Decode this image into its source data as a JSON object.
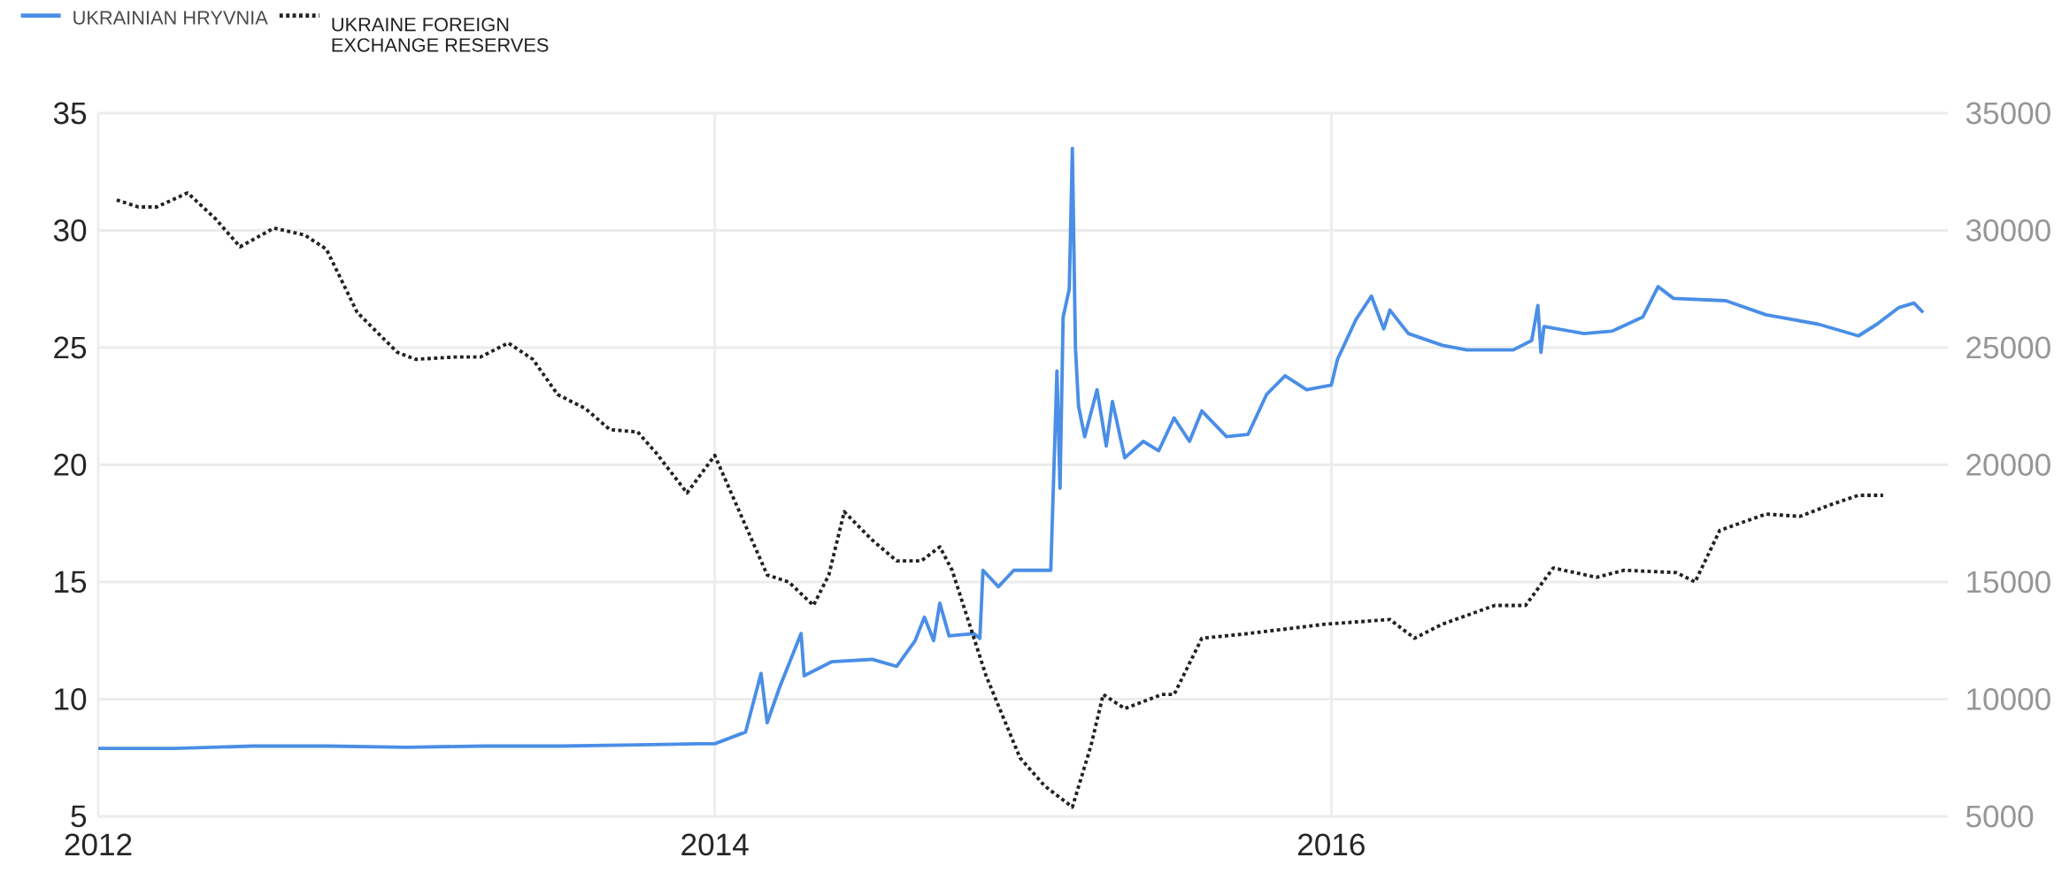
{
  "chart_data": {
    "type": "line",
    "xlim": [
      2012,
      2018
    ],
    "xticks": [
      2012,
      2014,
      2016
    ],
    "ylim": [
      5,
      35
    ],
    "yticks": [
      5,
      10,
      15,
      20,
      25,
      30,
      35
    ],
    "y2lim": [
      5000,
      35000
    ],
    "y2ticks": [
      5000,
      10000,
      15000,
      20000,
      25000,
      30000,
      35000
    ],
    "grid": true,
    "legend": "top left",
    "marker": "none",
    "series": [
      {
        "name": "UKRAINIAN HRYVNIA",
        "color": "#4a8ee6",
        "line_style": "solid",
        "x": [
          2012.0,
          2012.25,
          2012.5,
          2012.75,
          2013.0,
          2013.25,
          2013.5,
          2013.75,
          2013.95,
          2014.0,
          2014.1,
          2014.15,
          2014.17,
          2014.21,
          2014.28,
          2014.29,
          2014.38,
          2014.51,
          2014.59,
          2014.65,
          2014.68,
          2014.71,
          2014.73,
          2014.76,
          2014.84,
          2014.86,
          2014.87,
          2014.92,
          2014.97,
          2015.09,
          2015.11,
          2015.12,
          2015.13,
          2015.15,
          2015.16,
          2015.17,
          2015.18,
          2015.2,
          2015.24,
          2015.27,
          2015.29,
          2015.33,
          2015.39,
          2015.44,
          2015.49,
          2015.54,
          2015.58,
          2015.66,
          2015.73,
          2015.79,
          2015.85,
          2015.92,
          2016.0,
          2016.02,
          2016.08,
          2016.13,
          2016.17,
          2016.19,
          2016.25,
          2016.36,
          2016.44,
          2016.59,
          2016.65,
          2016.67,
          2016.68,
          2016.69,
          2016.82,
          2016.91,
          2017.01,
          2017.06,
          2017.11,
          2017.28,
          2017.41,
          2017.58,
          2017.71,
          2017.77,
          2017.84,
          2017.89,
          2017.92
        ],
        "values": [
          7.9,
          7.9,
          8.0,
          8.0,
          7.95,
          8.0,
          8.0,
          8.05,
          8.1,
          8.1,
          8.6,
          11.1,
          9.0,
          10.5,
          12.8,
          11.0,
          11.6,
          11.7,
          11.4,
          12.5,
          13.5,
          12.5,
          14.1,
          12.7,
          12.8,
          12.6,
          15.5,
          14.8,
          15.5,
          15.5,
          24,
          19,
          26.3,
          27.5,
          33.5,
          25,
          22.5,
          21.2,
          23.2,
          20.8,
          22.7,
          20.3,
          21.0,
          20.6,
          22.0,
          21.0,
          22.3,
          21.2,
          21.3,
          23.0,
          23.8,
          23.2,
          23.4,
          24.5,
          26.2,
          27.2,
          25.8,
          26.6,
          25.6,
          25.1,
          24.9,
          24.9,
          25.3,
          26.8,
          24.8,
          25.9,
          25.6,
          25.7,
          26.3,
          27.6,
          27.1,
          27.0,
          26.4,
          26.0,
          25.5,
          26.0,
          26.7,
          26.9,
          26.5
        ]
      },
      {
        "name": "UKRAINE FOREIGN EXCHANGE RESERVES",
        "color": "#222222",
        "line_style": "dotted",
        "axis": "y2",
        "x": [
          2012.06,
          2012.13,
          2012.19,
          2012.29,
          2012.38,
          2012.46,
          2012.57,
          2012.67,
          2012.74,
          2012.84,
          2012.97,
          2013.03,
          2013.16,
          2013.24,
          2013.33,
          2013.41,
          2013.49,
          2013.58,
          2013.66,
          2013.75,
          2013.81,
          2013.91,
          2014.0,
          2014.08,
          2014.17,
          2014.24,
          2014.32,
          2014.37,
          2014.42,
          2014.51,
          2014.59,
          2014.67,
          2014.73,
          2014.77,
          2014.88,
          2014.99,
          2015.07,
          2015.16,
          2015.22,
          2015.26,
          2015.33,
          2015.45,
          2015.49,
          2015.58,
          2015.73,
          2015.98,
          2016.19,
          2016.27,
          2016.36,
          2016.53,
          2016.63,
          2016.72,
          2016.86,
          2016.95,
          2017.12,
          2017.18,
          2017.26,
          2017.41,
          2017.52,
          2017.62,
          2017.71,
          2017.79
        ],
        "values": [
          31300,
          31000,
          31000,
          31600,
          30500,
          29300,
          30100,
          29800,
          29200,
          26500,
          24800,
          24500,
          24600,
          24600,
          25200,
          24500,
          23000,
          22400,
          21500,
          21400,
          20500,
          18800,
          20400,
          18000,
          15300,
          15000,
          14000,
          15300,
          18000,
          16800,
          15900,
          15900,
          16500,
          15500,
          11000,
          7500,
          6300,
          5400,
          8000,
          10200,
          9600,
          10200,
          10200,
          12600,
          12800,
          13200,
          13400,
          12600,
          13200,
          14000,
          14000,
          15600,
          15200,
          15500,
          15400,
          15000,
          17200,
          17900,
          17800,
          18300,
          18700,
          18700
        ]
      }
    ]
  }
}
